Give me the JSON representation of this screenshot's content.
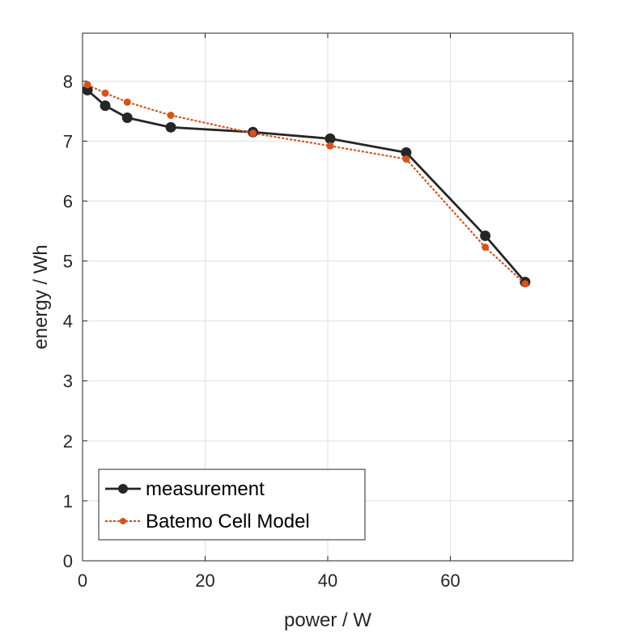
{
  "chart_data": {
    "type": "line",
    "title": "",
    "xlabel": "power / W",
    "ylabel": "energy / Wh",
    "xlim": [
      0,
      80
    ],
    "ylim": [
      0,
      8.8
    ],
    "xticks": [
      0,
      20,
      40,
      60
    ],
    "yticks": [
      0,
      1,
      2,
      3,
      4,
      5,
      6,
      7,
      8
    ],
    "grid": true,
    "legend_position": "bottom-left",
    "series": [
      {
        "name": "measurement",
        "color": "#262626",
        "line_style": "solid",
        "marker": "circle",
        "x": [
          0.8,
          3.7,
          7.3,
          14.4,
          27.8,
          40.4,
          52.8,
          65.7,
          72.2
        ],
        "y": [
          7.85,
          7.59,
          7.39,
          7.23,
          7.15,
          7.04,
          6.81,
          5.42,
          4.65
        ]
      },
      {
        "name": "Batemo Cell Model",
        "color": "#d95319",
        "line_style": "dotted",
        "marker": "circle",
        "x": [
          0.8,
          3.7,
          7.3,
          14.4,
          27.8,
          40.4,
          52.8,
          65.7,
          72.2
        ],
        "y": [
          7.94,
          7.8,
          7.65,
          7.43,
          7.13,
          6.92,
          6.7,
          5.23,
          4.62
        ]
      }
    ]
  }
}
